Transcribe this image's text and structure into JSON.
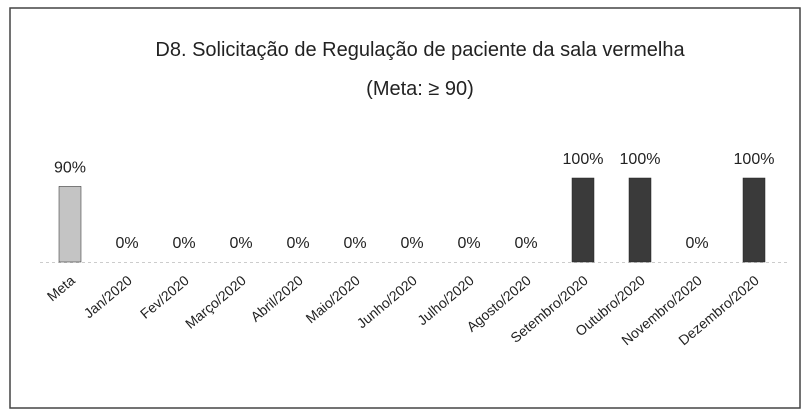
{
  "chart_data": {
    "type": "bar",
    "title": "D8. Solicitação de Regulação de paciente da sala vermelha",
    "subtitle": "(Meta: ≥ 90)",
    "categories": [
      "Meta",
      "Jan/2020",
      "Fev/2020",
      "Março/2020",
      "Abril/2020",
      "Maio/2020",
      "Junho/2020",
      "Julho/2020",
      "Agosto/2020",
      "Setembro/2020",
      "Outubro/2020",
      "Novembro/2020",
      "Dezembro/2020"
    ],
    "values": [
      90,
      0,
      0,
      0,
      0,
      0,
      0,
      0,
      0,
      100,
      100,
      0,
      100
    ],
    "value_labels": [
      "90%",
      "0%",
      "0%",
      "0%",
      "0%",
      "0%",
      "0%",
      "0%",
      "0%",
      "100%",
      "100%",
      "0%",
      "100%"
    ],
    "colors": [
      "#c4c4c4",
      "#3a3a3a",
      "#3a3a3a",
      "#3a3a3a",
      "#3a3a3a",
      "#3a3a3a",
      "#3a3a3a",
      "#3a3a3a",
      "#3a3a3a",
      "#3a3a3a",
      "#3a3a3a",
      "#3a3a3a",
      "#3a3a3a"
    ]
  }
}
